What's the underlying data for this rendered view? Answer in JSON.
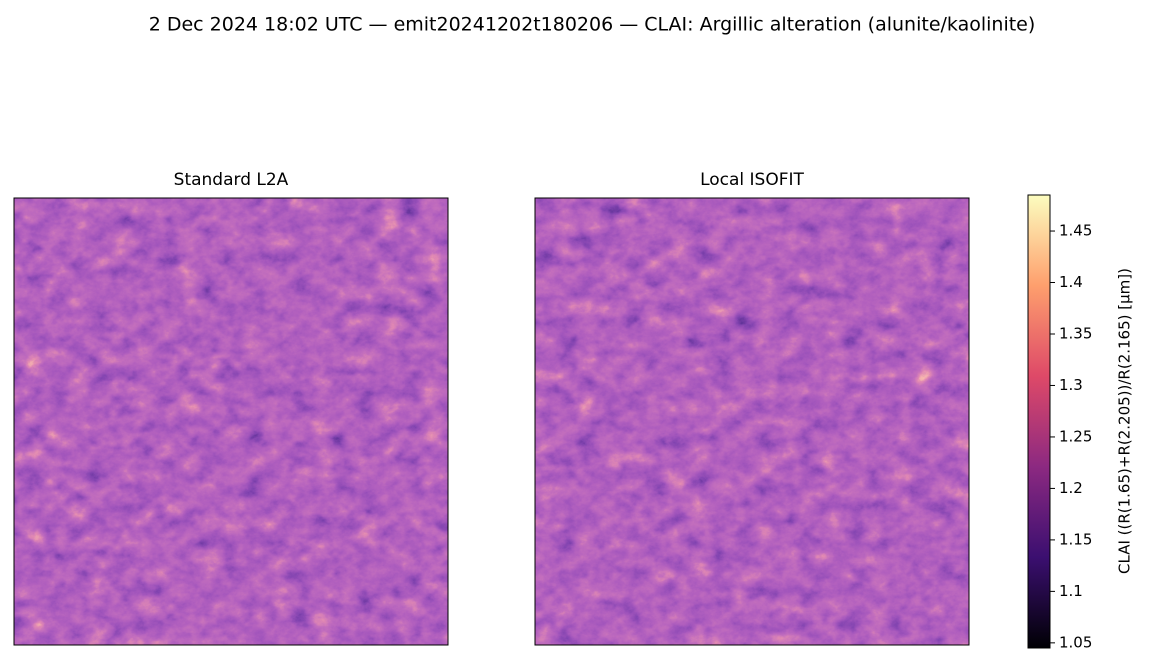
{
  "chart_data": {
    "type": "image",
    "title": "2 Dec 2024 18:02 UTC — emit20241202t180206 — CLAI: Argillic alteration (alunite/kaolinite)",
    "panels": [
      {
        "title": "Standard L2A"
      },
      {
        "title": "Local ISOFIT"
      }
    ],
    "colorbar_label": "CLAI  ((R(1.65)+R(2.205))/R(2.165)  [µm])",
    "clim": [
      1.045,
      1.485
    ],
    "cticks": [
      1.05,
      1.1,
      1.15,
      1.2,
      1.25,
      1.3,
      1.35,
      1.4,
      1.45
    ]
  }
}
